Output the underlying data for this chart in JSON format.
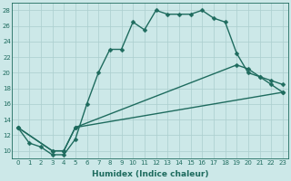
{
  "xlabel": "Humidex (Indice chaleur)",
  "background_color": "#cce8e8",
  "line_color": "#1e6b5e",
  "grid_color": "#aacece",
  "xlim": [
    -0.5,
    23.5
  ],
  "ylim": [
    9,
    29
  ],
  "xticks": [
    0,
    1,
    2,
    3,
    4,
    5,
    6,
    7,
    8,
    9,
    10,
    11,
    12,
    13,
    14,
    15,
    16,
    17,
    18,
    19,
    20,
    21,
    22,
    23
  ],
  "yticks": [
    10,
    12,
    14,
    16,
    18,
    20,
    22,
    24,
    26,
    28
  ],
  "line1_x": [
    0,
    1,
    2,
    3,
    4,
    5,
    6,
    7,
    8,
    9,
    10,
    11,
    12,
    13,
    14,
    15,
    16,
    17,
    18,
    19,
    20,
    21,
    22,
    23
  ],
  "line1_y": [
    13,
    11,
    10.5,
    9.5,
    9.5,
    11.5,
    16,
    20,
    23,
    23,
    26.5,
    25.5,
    28,
    27.5,
    27.5,
    27.5,
    28,
    27,
    26.5,
    22.5,
    20,
    19.5,
    18.5,
    17.5
  ],
  "line2_x": [
    0,
    3,
    4,
    5,
    19,
    20,
    21,
    22,
    23
  ],
  "line2_y": [
    13,
    10,
    10,
    13,
    21,
    20.5,
    19.5,
    19,
    18.5
  ],
  "line3_x": [
    0,
    3,
    4,
    5,
    23
  ],
  "line3_y": [
    13,
    10,
    10,
    13,
    17.5
  ],
  "marker": "D",
  "markersize": 2.5,
  "linewidth": 1.0,
  "tick_fontsize": 5.0,
  "xlabel_fontsize": 6.5
}
